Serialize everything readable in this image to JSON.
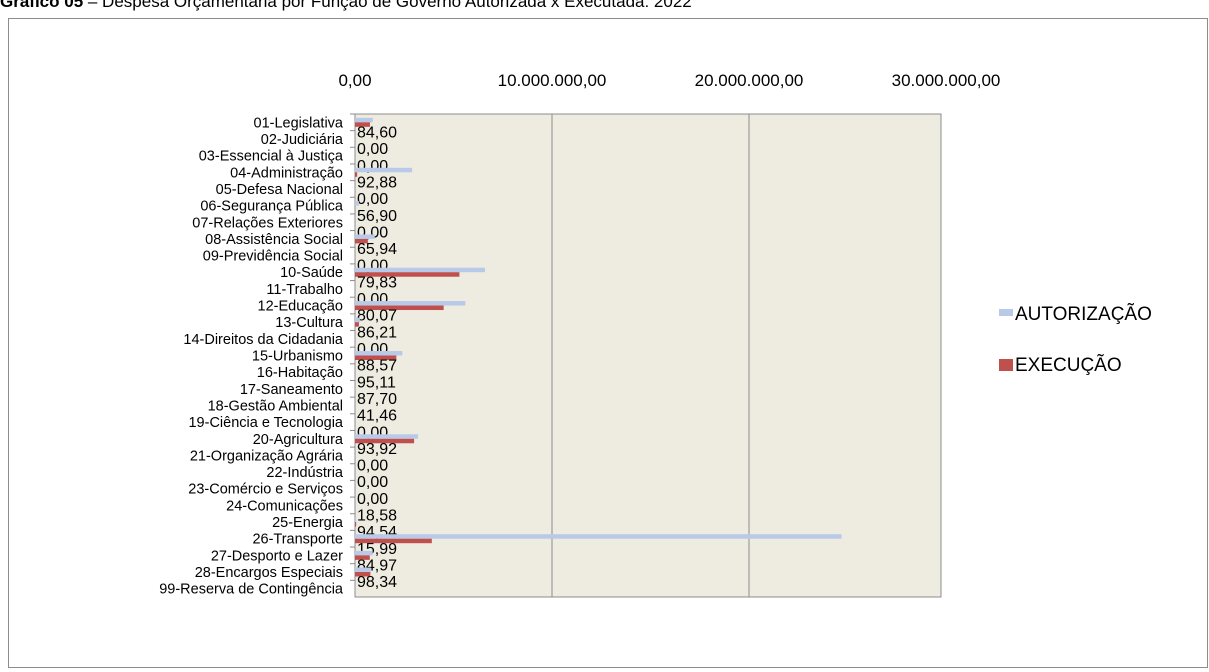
{
  "header": {
    "prefix": "Gráfico 05",
    "title": " – Despesa Orçamentária por Função de Governo Autorizada x Executada: 2022"
  },
  "chart_data": {
    "type": "bar",
    "orientation": "horizontal",
    "xlim": [
      0,
      30000000
    ],
    "x_ticks": [
      "0,00",
      "10.000.000,00",
      "20.000.000,00",
      "30.000.000,00"
    ],
    "x_tick_values": [
      0,
      10000000,
      20000000,
      30000000
    ],
    "x_axis_position": "top",
    "grid": true,
    "plot_background": "#EEECE1",
    "legend_position": "right",
    "categories": [
      "01-Legislativa",
      "02-Judiciária",
      "03-Essencial à Justiça",
      "04-Administração",
      "05-Defesa Nacional",
      "06-Segurança Pública",
      "07-Relações Exteriores",
      "08-Assistência Social",
      "09-Previdência Social",
      "10-Saúde",
      "11-Trabalho",
      "12-Educação",
      "13-Cultura",
      "14-Direitos da Cidadania",
      "15-Urbanismo",
      "16-Habitação",
      "17-Saneamento",
      "18-Gestão Ambiental",
      "19-Ciência e Tecnologia",
      "20-Agricultura",
      "21-Organização Agrária",
      "22-Indústria",
      "23-Comércio e Serviços",
      "24-Comunicações",
      "25-Energia",
      "26-Transporte",
      "27-Desporto e Lazer",
      "28-Encargos Especiais",
      "99-Reserva de Contingência"
    ],
    "series": [
      {
        "name": "AUTORIZAÇÃO",
        "color": "#B9C9E8",
        "values": [
          900000,
          0,
          0,
          2900000,
          0,
          200000,
          0,
          1000000,
          0,
          6600000,
          0,
          5600000,
          250000,
          0,
          2400000,
          0,
          0,
          0,
          0,
          3200000,
          0,
          0,
          0,
          0,
          60000,
          24700000,
          900000,
          800000,
          0
        ]
      },
      {
        "name": "EXECUÇÃO",
        "color": "#C0504D",
        "values": [
          760000,
          0,
          0,
          110000,
          0,
          0,
          0,
          650000,
          0,
          5300000,
          0,
          4500000,
          200000,
          0,
          2100000,
          0,
          0,
          0,
          0,
          3000000,
          0,
          0,
          0,
          0,
          60000,
          3900000,
          750000,
          780000,
          0
        ]
      }
    ],
    "data_labels": [
      "84,60",
      "0,00",
      "0,00",
      "92,88",
      "0,00",
      "56,90",
      "0,00",
      "65,94",
      "0,00",
      "79,83",
      "0,00",
      "80,07",
      "86,21",
      "0,00",
      "88,57",
      "95,11",
      "87,70",
      "41,46",
      "0,00",
      "93,92",
      "0,00",
      "0,00",
      "0,00",
      "18,58",
      "94,54",
      "15,99",
      "84,97",
      "98,34"
    ]
  }
}
